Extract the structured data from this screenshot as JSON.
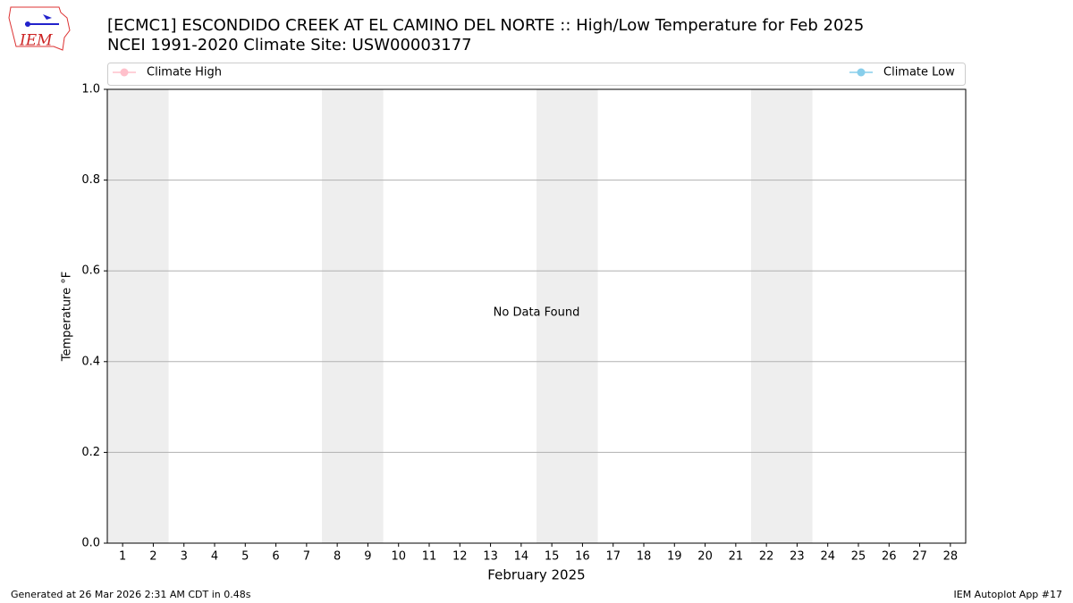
{
  "chart_data": {
    "type": "line",
    "title": "[ECMC1] ESCONDIDO CREEK AT EL CAMINO DEL NORTE :: High/Low Temperature for Feb 2025",
    "subtitle": "NCEI 1991-2020 Climate Site: USW00003177",
    "xlabel": "February 2025",
    "ylabel": "Temperature °F",
    "annotation": "No Data Found",
    "x": [],
    "series": [
      {
        "name": "Climate High",
        "color": "#ffc0cb",
        "values": []
      },
      {
        "name": "Climate Low",
        "color": "#87ceeb",
        "values": []
      }
    ],
    "xlim": [
      0.5,
      28.5
    ],
    "xticks": [
      1,
      2,
      3,
      4,
      5,
      6,
      7,
      8,
      9,
      10,
      11,
      12,
      13,
      14,
      15,
      16,
      17,
      18,
      19,
      20,
      21,
      22,
      23,
      24,
      25,
      26,
      27,
      28
    ],
    "ylim": [
      0,
      1
    ],
    "yticks": [
      {
        "value": 0,
        "label": "0.0"
      },
      0.2,
      0.4,
      0.6,
      0.8,
      {
        "value": 1,
        "label": "1.0"
      }
    ],
    "grid": true
  },
  "logo": "IEM",
  "footer": {
    "left": "Generated at 26 Mar 2026 2:31 AM CDT in 0.48s",
    "right": "IEM Autoplot App #17"
  }
}
